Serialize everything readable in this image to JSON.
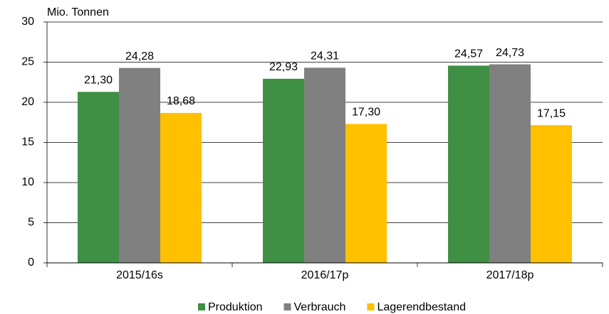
{
  "chart_data": {
    "type": "bar",
    "y_label": "Mio. Tonnen",
    "categories": [
      "2015/16s",
      "2016/17p",
      "2017/18p"
    ],
    "series": [
      {
        "name": "Produktion",
        "color": "#3f8f45",
        "values": [
          21.3,
          22.93,
          24.57
        ],
        "value_labels": [
          "21,30",
          "22,93",
          "24,57"
        ]
      },
      {
        "name": "Verbrauch",
        "color": "#808080",
        "values": [
          24.28,
          24.31,
          24.73
        ],
        "value_labels": [
          "24,28",
          "24,31",
          "24,73"
        ]
      },
      {
        "name": "Lagerendbestand",
        "color": "#ffc000",
        "values": [
          18.68,
          17.3,
          17.15
        ],
        "value_labels": [
          "18,68",
          "17,30",
          "17,15"
        ]
      }
    ],
    "ylim": [
      0,
      30
    ],
    "yticks": [
      0,
      5,
      10,
      15,
      20,
      25,
      30
    ],
    "grid": true,
    "legend": "bottom"
  }
}
